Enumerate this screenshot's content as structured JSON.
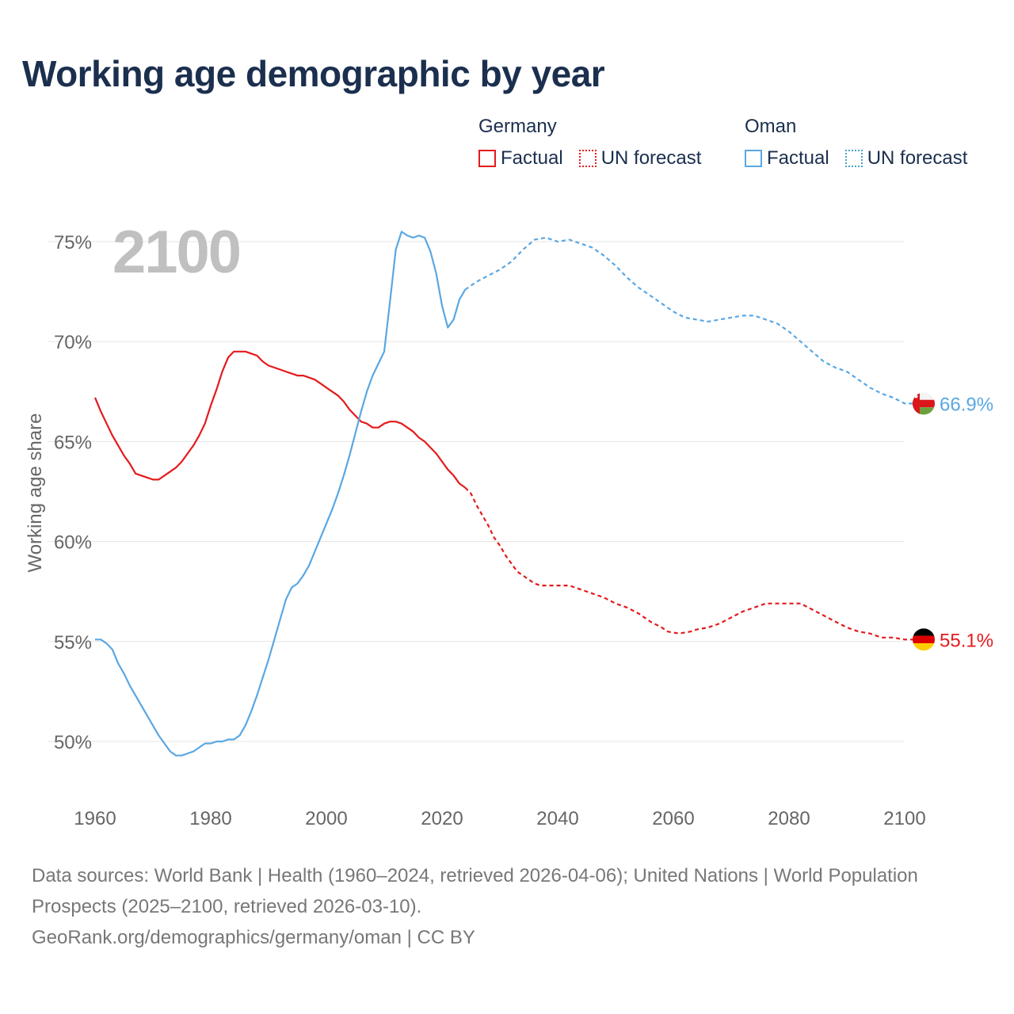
{
  "title": "Working age demographic by year",
  "legend": {
    "germany": {
      "name": "Germany",
      "factual": "Factual",
      "forecast": "UN forecast"
    },
    "oman": {
      "name": "Oman",
      "factual": "Factual",
      "forecast": "UN forecast"
    }
  },
  "colors": {
    "germany": "#e41a1c",
    "oman": "#5aa7e3",
    "grid": "#e5e5e5",
    "axis_text": "#666666",
    "year_watermark": "#c0c0c0"
  },
  "footer": {
    "sources": "Data sources: World Bank | Health (1960–2024, retrieved 2026-04-06); United Nations | World Population Prospects (2025–2100, retrieved 2026-03-10).",
    "credit": "GeoRank.org/demographics/germany/oman | CC BY"
  },
  "chart_data": {
    "type": "line",
    "current_year_label": "2100",
    "ylabel": "Working age share",
    "ylim": [
      47,
      76.5
    ],
    "xlim": [
      1960,
      2103
    ],
    "y_ticks": [
      {
        "value": 50,
        "label": "50%"
      },
      {
        "value": 55,
        "label": "55%"
      },
      {
        "value": 60,
        "label": "60%"
      },
      {
        "value": 65,
        "label": "65%"
      },
      {
        "value": 70,
        "label": "70%"
      },
      {
        "value": 75,
        "label": "75%"
      }
    ],
    "x_ticks": [
      {
        "value": 1960,
        "label": "1960"
      },
      {
        "value": 1980,
        "label": "1980"
      },
      {
        "value": 2000,
        "label": "2000"
      },
      {
        "value": 2020,
        "label": "2020"
      },
      {
        "value": 2040,
        "label": "2040"
      },
      {
        "value": 2060,
        "label": "2060"
      },
      {
        "value": 2080,
        "label": "2080"
      },
      {
        "value": 2100,
        "label": "2100"
      }
    ],
    "series": [
      {
        "name": "Germany",
        "color": "#e41a1c",
        "end_label": "55.1%",
        "flag_icon": "germany-flag-icon",
        "factual": [
          [
            1960,
            67.2
          ],
          [
            1961,
            66.5
          ],
          [
            1962,
            65.9
          ],
          [
            1963,
            65.3
          ],
          [
            1964,
            64.8
          ],
          [
            1965,
            64.3
          ],
          [
            1966,
            63.9
          ],
          [
            1967,
            63.4
          ],
          [
            1968,
            63.3
          ],
          [
            1969,
            63.2
          ],
          [
            1970,
            63.1
          ],
          [
            1971,
            63.1
          ],
          [
            1972,
            63.3
          ],
          [
            1973,
            63.5
          ],
          [
            1974,
            63.7
          ],
          [
            1975,
            64.0
          ],
          [
            1976,
            64.4
          ],
          [
            1977,
            64.8
          ],
          [
            1978,
            65.3
          ],
          [
            1979,
            65.9
          ],
          [
            1980,
            66.8
          ],
          [
            1981,
            67.6
          ],
          [
            1982,
            68.5
          ],
          [
            1983,
            69.2
          ],
          [
            1984,
            69.5
          ],
          [
            1985,
            69.5
          ],
          [
            1986,
            69.5
          ],
          [
            1987,
            69.4
          ],
          [
            1988,
            69.3
          ],
          [
            1989,
            69.0
          ],
          [
            1990,
            68.8
          ],
          [
            1991,
            68.7
          ],
          [
            1992,
            68.6
          ],
          [
            1993,
            68.5
          ],
          [
            1994,
            68.4
          ],
          [
            1995,
            68.3
          ],
          [
            1996,
            68.3
          ],
          [
            1997,
            68.2
          ],
          [
            1998,
            68.1
          ],
          [
            1999,
            67.9
          ],
          [
            2000,
            67.7
          ],
          [
            2001,
            67.5
          ],
          [
            2002,
            67.3
          ],
          [
            2003,
            67.0
          ],
          [
            2004,
            66.6
          ],
          [
            2005,
            66.3
          ],
          [
            2006,
            66.0
          ],
          [
            2007,
            65.9
          ],
          [
            2008,
            65.7
          ],
          [
            2009,
            65.7
          ],
          [
            2010,
            65.9
          ],
          [
            2011,
            66.0
          ],
          [
            2012,
            66.0
          ],
          [
            2013,
            65.9
          ],
          [
            2014,
            65.7
          ],
          [
            2015,
            65.5
          ],
          [
            2016,
            65.2
          ],
          [
            2017,
            65.0
          ],
          [
            2018,
            64.7
          ],
          [
            2019,
            64.4
          ],
          [
            2020,
            64.0
          ],
          [
            2021,
            63.6
          ],
          [
            2022,
            63.3
          ],
          [
            2023,
            62.9
          ],
          [
            2024,
            62.7
          ]
        ],
        "forecast": [
          [
            2024,
            62.7
          ],
          [
            2025,
            62.4
          ],
          [
            2026,
            61.8
          ],
          [
            2027,
            61.3
          ],
          [
            2028,
            60.8
          ],
          [
            2029,
            60.2
          ],
          [
            2030,
            59.8
          ],
          [
            2031,
            59.3
          ],
          [
            2032,
            58.9
          ],
          [
            2033,
            58.5
          ],
          [
            2034,
            58.3
          ],
          [
            2035,
            58.1
          ],
          [
            2036,
            57.9
          ],
          [
            2037,
            57.8
          ],
          [
            2038,
            57.8
          ],
          [
            2040,
            57.8
          ],
          [
            2042,
            57.8
          ],
          [
            2044,
            57.6
          ],
          [
            2046,
            57.4
          ],
          [
            2048,
            57.2
          ],
          [
            2050,
            56.9
          ],
          [
            2052,
            56.7
          ],
          [
            2054,
            56.4
          ],
          [
            2056,
            56.0
          ],
          [
            2058,
            55.7
          ],
          [
            2059,
            55.5
          ],
          [
            2061,
            55.4
          ],
          [
            2063,
            55.5
          ],
          [
            2064,
            55.6
          ],
          [
            2066,
            55.7
          ],
          [
            2068,
            55.9
          ],
          [
            2070,
            56.2
          ],
          [
            2072,
            56.5
          ],
          [
            2074,
            56.7
          ],
          [
            2076,
            56.9
          ],
          [
            2078,
            56.9
          ],
          [
            2080,
            56.9
          ],
          [
            2082,
            56.9
          ],
          [
            2084,
            56.6
          ],
          [
            2086,
            56.3
          ],
          [
            2088,
            56.0
          ],
          [
            2090,
            55.7
          ],
          [
            2092,
            55.5
          ],
          [
            2094,
            55.4
          ],
          [
            2096,
            55.2
          ],
          [
            2098,
            55.2
          ],
          [
            2100,
            55.1
          ],
          [
            2102,
            55.1
          ]
        ]
      },
      {
        "name": "Oman",
        "color": "#5aa7e3",
        "end_label": "66.9%",
        "flag_icon": "oman-flag-icon",
        "factual": [
          [
            1960,
            55.1
          ],
          [
            1961,
            55.1
          ],
          [
            1962,
            54.9
          ],
          [
            1963,
            54.6
          ],
          [
            1964,
            53.9
          ],
          [
            1965,
            53.4
          ],
          [
            1966,
            52.8
          ],
          [
            1967,
            52.3
          ],
          [
            1968,
            51.8
          ],
          [
            1969,
            51.3
          ],
          [
            1970,
            50.8
          ],
          [
            1971,
            50.3
          ],
          [
            1972,
            49.9
          ],
          [
            1973,
            49.5
          ],
          [
            1974,
            49.3
          ],
          [
            1975,
            49.3
          ],
          [
            1976,
            49.4
          ],
          [
            1977,
            49.5
          ],
          [
            1978,
            49.7
          ],
          [
            1979,
            49.9
          ],
          [
            1980,
            49.9
          ],
          [
            1981,
            50.0
          ],
          [
            1982,
            50.0
          ],
          [
            1983,
            50.1
          ],
          [
            1984,
            50.1
          ],
          [
            1985,
            50.3
          ],
          [
            1986,
            50.8
          ],
          [
            1987,
            51.5
          ],
          [
            1988,
            52.3
          ],
          [
            1989,
            53.2
          ],
          [
            1990,
            54.1
          ],
          [
            1991,
            55.1
          ],
          [
            1992,
            56.1
          ],
          [
            1993,
            57.1
          ],
          [
            1994,
            57.7
          ],
          [
            1995,
            57.9
          ],
          [
            1996,
            58.3
          ],
          [
            1997,
            58.8
          ],
          [
            1998,
            59.5
          ],
          [
            1999,
            60.2
          ],
          [
            2000,
            60.9
          ],
          [
            2001,
            61.6
          ],
          [
            2002,
            62.4
          ],
          [
            2003,
            63.3
          ],
          [
            2004,
            64.3
          ],
          [
            2005,
            65.4
          ],
          [
            2006,
            66.5
          ],
          [
            2007,
            67.5
          ],
          [
            2008,
            68.3
          ],
          [
            2009,
            68.9
          ],
          [
            2010,
            69.5
          ],
          [
            2011,
            72.0
          ],
          [
            2012,
            74.6
          ],
          [
            2013,
            75.5
          ],
          [
            2014,
            75.3
          ],
          [
            2015,
            75.2
          ],
          [
            2016,
            75.3
          ],
          [
            2017,
            75.2
          ],
          [
            2018,
            74.5
          ],
          [
            2019,
            73.4
          ],
          [
            2020,
            71.8
          ],
          [
            2021,
            70.7
          ],
          [
            2022,
            71.1
          ],
          [
            2023,
            72.1
          ],
          [
            2024,
            72.6
          ]
        ],
        "forecast": [
          [
            2024,
            72.6
          ],
          [
            2026,
            73.0
          ],
          [
            2028,
            73.3
          ],
          [
            2030,
            73.6
          ],
          [
            2032,
            74.0
          ],
          [
            2034,
            74.6
          ],
          [
            2036,
            75.1
          ],
          [
            2038,
            75.2
          ],
          [
            2040,
            75.0
          ],
          [
            2042,
            75.1
          ],
          [
            2044,
            74.9
          ],
          [
            2046,
            74.7
          ],
          [
            2048,
            74.3
          ],
          [
            2050,
            73.8
          ],
          [
            2052,
            73.2
          ],
          [
            2054,
            72.7
          ],
          [
            2056,
            72.3
          ],
          [
            2058,
            71.9
          ],
          [
            2060,
            71.5
          ],
          [
            2062,
            71.2
          ],
          [
            2064,
            71.1
          ],
          [
            2066,
            71.0
          ],
          [
            2068,
            71.1
          ],
          [
            2070,
            71.2
          ],
          [
            2072,
            71.3
          ],
          [
            2074,
            71.3
          ],
          [
            2076,
            71.1
          ],
          [
            2078,
            70.9
          ],
          [
            2080,
            70.5
          ],
          [
            2082,
            70.0
          ],
          [
            2084,
            69.5
          ],
          [
            2086,
            69.0
          ],
          [
            2088,
            68.7
          ],
          [
            2090,
            68.5
          ],
          [
            2092,
            68.1
          ],
          [
            2094,
            67.7
          ],
          [
            2096,
            67.4
          ],
          [
            2098,
            67.2
          ],
          [
            2100,
            66.9
          ],
          [
            2102,
            66.9
          ]
        ]
      }
    ]
  }
}
